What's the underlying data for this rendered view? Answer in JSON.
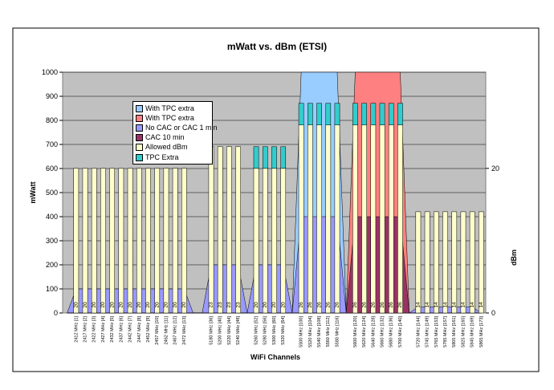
{
  "chart_data": {
    "type": "area",
    "title": "mWatt vs. dBm (ETSI)",
    "xlabel": "WiFi Channels",
    "ylabel": "mWatt",
    "y2label": "dBm",
    "ylim": [
      0,
      1000
    ],
    "yticks": [
      0,
      100,
      200,
      300,
      400,
      500,
      600,
      700,
      800,
      900,
      1000
    ],
    "y2lim": [
      0,
      33.3
    ],
    "y2ticks": [
      0,
      20
    ],
    "grid": true,
    "legend_position": "top-left",
    "categories": [
      "",
      "2412 MHz [1]",
      "2417 MHz [2]",
      "2422 MHz [3]",
      "2427 MHz [4]",
      "2432 MHz [5]",
      "2437 MHz [6]",
      "2442 MHz [7]",
      "2447 MHz [8]",
      "2452 MHz [9]",
      "2457 MHz [10]",
      "2462 MHz [11]",
      "2467 MHz [12]",
      "2472 MHz [13]",
      "",
      "",
      "5180 MHz [36]",
      "5200 MHz [40]",
      "5220 MHz [44]",
      "5240 MHz [48]",
      "",
      "5260 MHz [52]",
      "5280 MHz [56]",
      "5300 MHz [60]",
      "5320 MHz [64]",
      "",
      "5500 MHz [100]",
      "5520 MHz [104]",
      "5540 MHz [108]",
      "5560 MHz [112]",
      "5580 MHz [116]",
      "",
      "5600 MHz [120]",
      "5620 MHz [124]",
      "5640 MHz [128]",
      "5660 MHz [132]",
      "5680 MHz [136]",
      "5700 MHz [140]",
      "",
      "5720 MHz [144]",
      "5745 MHz [149]",
      "5765 MHz [153]",
      "5785 MHz [157]",
      "5805 MHz [161]",
      "5825 MHz [165]",
      "5845 MHz [169]",
      "5865 MHz [173]"
    ],
    "series": [
      {
        "name": "With TPC extra",
        "type": "area",
        "color": "#99ccff",
        "values": [
          0,
          0,
          0,
          0,
          0,
          0,
          0,
          0,
          0,
          0,
          0,
          0,
          0,
          0,
          0,
          0,
          0,
          0,
          0,
          0,
          0,
          0,
          0,
          0,
          0,
          0,
          1000,
          1000,
          1000,
          1000,
          1000,
          0,
          0,
          0,
          0,
          0,
          0,
          0,
          0,
          0,
          0,
          0,
          0,
          0,
          0,
          0,
          0
        ]
      },
      {
        "name": "With TPC extra",
        "type": "area",
        "color": "#ff8080",
        "values": [
          0,
          0,
          0,
          0,
          0,
          0,
          0,
          0,
          0,
          0,
          0,
          0,
          0,
          0,
          0,
          0,
          0,
          0,
          0,
          0,
          0,
          0,
          0,
          0,
          0,
          0,
          0,
          0,
          0,
          0,
          0,
          0,
          1000,
          1000,
          1000,
          1000,
          1000,
          1000,
          0,
          0,
          0,
          0,
          0,
          0,
          0,
          0,
          0
        ]
      },
      {
        "name": "No CAC or CAC 1 min",
        "type": "area",
        "color": "#9999ff",
        "values": [
          0,
          100,
          100,
          100,
          100,
          100,
          100,
          100,
          100,
          100,
          100,
          100,
          100,
          100,
          0,
          0,
          200,
          200,
          200,
          200,
          0,
          200,
          200,
          200,
          200,
          0,
          400,
          400,
          400,
          400,
          400,
          0,
          0,
          0,
          0,
          0,
          0,
          0,
          0,
          25,
          25,
          25,
          25,
          25,
          25,
          25,
          0
        ]
      },
      {
        "name": "CAC 10 min",
        "type": "area",
        "color": "#993366",
        "values": [
          0,
          0,
          0,
          0,
          0,
          0,
          0,
          0,
          0,
          0,
          0,
          0,
          0,
          0,
          0,
          0,
          0,
          0,
          0,
          0,
          0,
          0,
          0,
          0,
          0,
          0,
          0,
          0,
          0,
          0,
          0,
          0,
          400,
          400,
          400,
          400,
          400,
          400,
          0,
          0,
          0,
          0,
          0,
          0,
          0,
          0,
          0
        ]
      },
      {
        "name": "Allowed dBm",
        "type": "bar",
        "axis": "secondary",
        "color": "#ffffcc",
        "values": [
          null,
          20,
          20,
          20,
          20,
          20,
          20,
          20,
          20,
          20,
          20,
          20,
          20,
          20,
          null,
          null,
          23,
          23,
          23,
          23,
          null,
          20,
          20,
          20,
          20,
          null,
          26,
          26,
          26,
          26,
          26,
          null,
          26,
          26,
          26,
          26,
          26,
          26,
          null,
          14,
          14,
          14,
          14,
          14,
          14,
          14,
          14
        ]
      },
      {
        "name": "TPC Extra",
        "type": "bar",
        "axis": "secondary",
        "stacked": true,
        "color": "#33cccc",
        "values": [
          null,
          0,
          0,
          0,
          0,
          0,
          0,
          0,
          0,
          0,
          0,
          0,
          0,
          0,
          null,
          null,
          0,
          0,
          0,
          0,
          null,
          3,
          3,
          3,
          3,
          null,
          3,
          3,
          3,
          3,
          3,
          null,
          3,
          3,
          3,
          3,
          3,
          3,
          null,
          0,
          0,
          0,
          0,
          0,
          0,
          0,
          0
        ]
      }
    ],
    "data_labels": [
      null,
      "20",
      "20",
      "20",
      "20",
      "20",
      "20",
      "20",
      "20",
      "20",
      "20",
      "20",
      "20",
      "20",
      null,
      null,
      "23",
      "23",
      "23",
      "23",
      null,
      "20",
      "20",
      "20",
      "20",
      null,
      "26",
      "26",
      "26",
      "26",
      "26",
      null,
      "26",
      "26",
      "26",
      "26",
      "26",
      "26",
      null,
      "14",
      "14",
      "14",
      "14",
      "14",
      "14",
      "14",
      "14"
    ]
  }
}
